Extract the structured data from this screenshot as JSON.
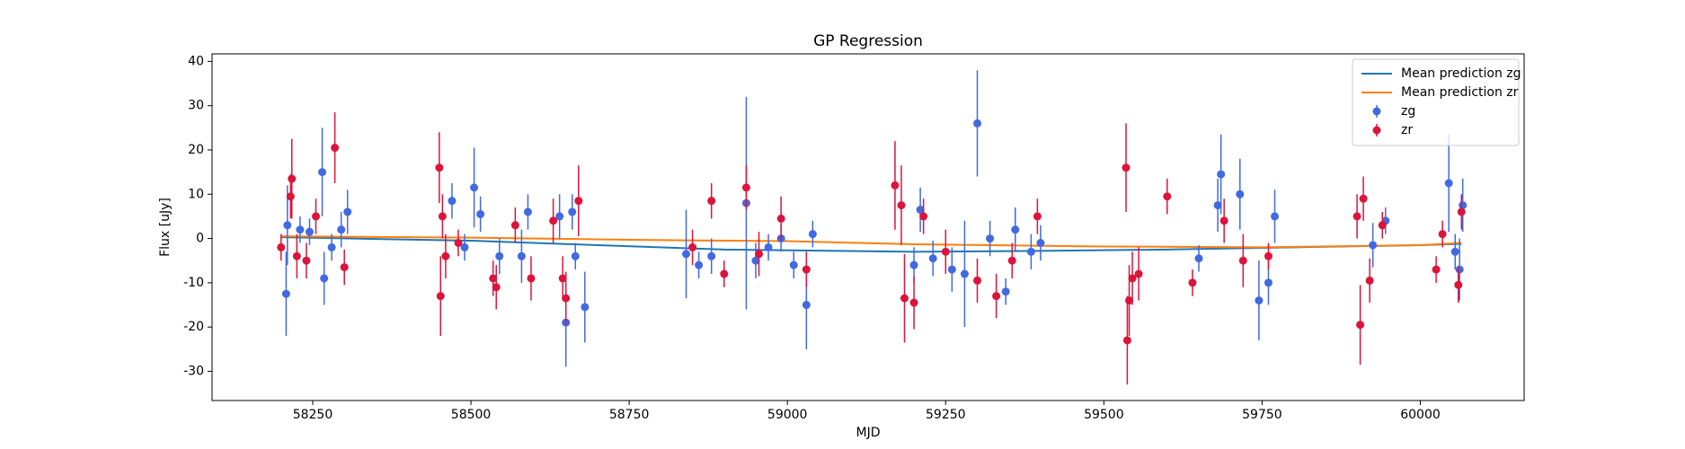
{
  "chart_data": {
    "type": "scatter",
    "title": "GP Regression",
    "xlabel": "MJD",
    "ylabel": "Flux [uJy]",
    "xlim": [
      58091,
      60164
    ],
    "ylim": [
      -36.6,
      41.7
    ],
    "xticks": [
      58250,
      58500,
      58750,
      59000,
      59250,
      59500,
      59750,
      60000
    ],
    "yticks": [
      -30,
      -20,
      -10,
      0,
      10,
      20,
      30,
      40
    ],
    "legend": "upper right",
    "series": [
      {
        "name": "Mean prediction zg",
        "type": "line",
        "color": "#1f77b4",
        "x": [
          58200,
          58350,
          58500,
          58700,
          58900,
          59200,
          59400,
          59600,
          59800,
          60000,
          60065
        ],
        "values": [
          0.3,
          -0.1,
          -0.5,
          -1.5,
          -2.5,
          -3,
          -2.8,
          -2.5,
          -2,
          -1.5,
          -1.2
        ]
      },
      {
        "name": "Mean prediction zr",
        "type": "line",
        "color": "#ff7f0e",
        "x": [
          58200,
          58500,
          58750,
          59000,
          59200,
          59500,
          59750,
          60000,
          60065
        ],
        "values": [
          0.5,
          0.2,
          -0.3,
          -0.6,
          -1.3,
          -1.8,
          -2,
          -1.5,
          -1
        ]
      },
      {
        "name": "zg",
        "type": "errorbar",
        "color": "#4169e1",
        "x": [
          58208,
          58210,
          58230,
          58245,
          58265,
          58268,
          58280,
          58295,
          58305,
          58470,
          58490,
          58505,
          58515,
          58545,
          58580,
          58590,
          58640,
          58650,
          58660,
          58665,
          58680,
          58840,
          58860,
          58880,
          58935,
          58950,
          58970,
          58990,
          59010,
          59030,
          59040,
          59200,
          59210,
          59230,
          59260,
          59280,
          59300,
          59320,
          59345,
          59360,
          59385,
          59400,
          59650,
          59680,
          59685,
          59715,
          59745,
          59760,
          59770,
          59925,
          59945,
          60045,
          60055,
          60062,
          60067
        ],
        "values": [
          -12.5,
          3,
          2,
          1.5,
          15,
          -9,
          -2,
          2,
          6,
          8.5,
          -2,
          11.5,
          5.5,
          -4,
          -4,
          6,
          5,
          -19,
          6,
          -4,
          -15.5,
          -3.5,
          -6,
          -4,
          8,
          -5,
          -2,
          0,
          -6,
          -15,
          1,
          -6,
          6.5,
          -4.5,
          -7,
          -8,
          26,
          0,
          -12,
          2,
          -3,
          -1,
          -4.5,
          7.5,
          14.5,
          10,
          -14,
          -10,
          5,
          -1.5,
          4,
          12.5,
          -3,
          -7,
          7.5
        ],
        "errors": [
          9.5,
          9,
          3,
          3,
          10,
          6,
          3,
          4,
          5,
          4,
          3,
          9,
          4,
          4,
          6,
          4,
          5,
          10,
          4,
          3,
          8,
          10,
          3,
          4,
          24,
          4,
          3,
          3,
          3,
          10,
          3,
          4,
          5,
          4,
          5,
          12,
          12,
          4,
          3,
          5,
          4,
          4,
          3,
          6,
          9,
          8,
          9,
          5,
          6,
          5,
          3,
          11,
          4,
          7,
          6
        ]
      },
      {
        "name": "zr",
        "type": "errorbar",
        "color": "#dc143c",
        "x": [
          58200,
          58215,
          58217,
          58225,
          58240,
          58255,
          58285,
          58300,
          58450,
          58452,
          58455,
          58460,
          58480,
          58535,
          58540,
          58570,
          58595,
          58630,
          58645,
          58650,
          58670,
          58850,
          58880,
          58900,
          58935,
          58955,
          58990,
          59030,
          59170,
          59180,
          59185,
          59200,
          59215,
          59250,
          59300,
          59330,
          59355,
          59395,
          59535,
          59537,
          59540,
          59545,
          59555,
          59600,
          59640,
          59690,
          59720,
          59760,
          59900,
          59905,
          59910,
          59920,
          59940,
          60025,
          60035,
          60060,
          60065
        ],
        "values": [
          -2,
          9.5,
          13.5,
          -4,
          -5,
          5,
          20.5,
          -6.5,
          16,
          -13,
          5,
          -4,
          -1,
          -9,
          -11,
          3,
          -9,
          4,
          -9,
          -13.5,
          8.5,
          -2,
          8.5,
          -8,
          11.5,
          -3.5,
          4.5,
          -7,
          12,
          7.5,
          -13.5,
          -14.5,
          5,
          -3,
          -9.5,
          -13,
          -5,
          5,
          16,
          -23,
          -14,
          -9,
          -8,
          9.5,
          -10,
          4,
          -5,
          -4,
          5,
          -19.5,
          9,
          -9.5,
          3,
          -7,
          1,
          -10.5,
          6
        ],
        "errors": [
          3,
          5,
          9,
          5,
          4,
          4,
          8,
          4,
          8,
          9,
          5,
          5,
          3,
          4,
          5,
          4,
          5,
          5,
          5,
          6,
          8,
          4,
          4,
          3,
          5,
          5,
          5,
          4,
          10,
          9,
          10,
          6,
          4,
          5,
          5,
          5,
          4,
          4,
          10,
          10,
          8,
          6,
          6,
          4,
          3,
          5,
          6,
          3,
          5,
          9,
          5,
          5,
          3,
          3,
          3,
          4,
          4
        ]
      }
    ]
  }
}
